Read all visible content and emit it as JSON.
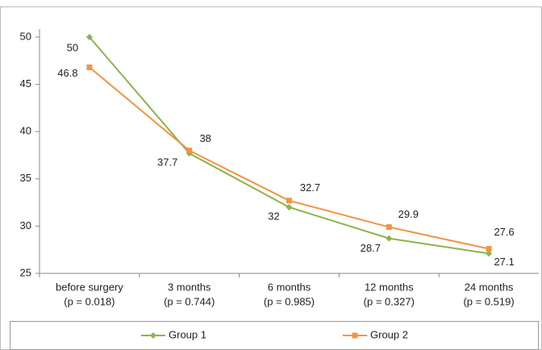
{
  "chart_data": {
    "type": "line",
    "categories": [
      [
        "before surgery",
        "(p = 0.018)"
      ],
      [
        "3 months",
        "(p = 0.744)"
      ],
      [
        "6 months",
        "(p = 0.985)"
      ],
      [
        "12 months",
        "(p = 0.327)"
      ],
      [
        "24 months",
        "(p = 0.519)"
      ]
    ],
    "series": [
      {
        "name": "Group 1",
        "color": "#8db34d",
        "marker": "diamond",
        "values": [
          50,
          37.7,
          32,
          28.7,
          27.1
        ]
      },
      {
        "name": "Group 2",
        "color": "#f39443",
        "marker": "square",
        "values": [
          46.8,
          38,
          32.7,
          29.9,
          27.6
        ]
      }
    ],
    "ylim": [
      25,
      50
    ],
    "yticks": [
      25,
      30,
      35,
      40,
      45,
      50
    ],
    "grid": false,
    "legend": "bottom"
  }
}
